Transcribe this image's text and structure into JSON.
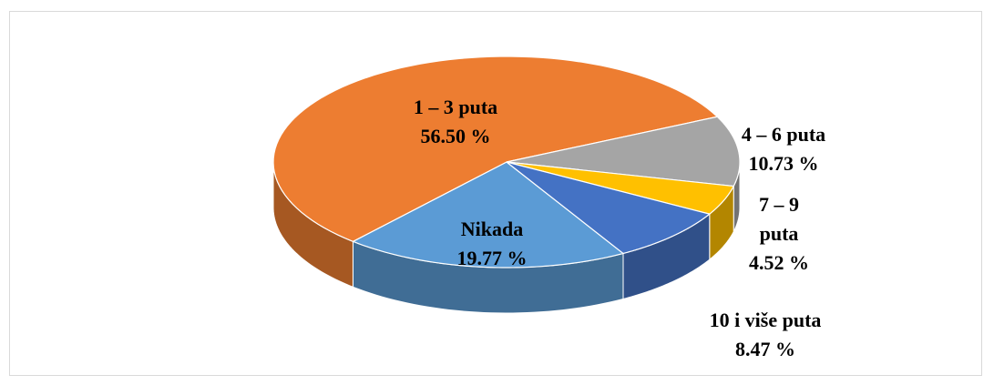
{
  "chart_data": {
    "type": "pie3d",
    "categories": [
      "Nikada",
      "1 – 3 puta",
      "4 – 6 puta",
      "7 – 9 puta",
      "10 i više puta"
    ],
    "values": [
      19.77,
      56.5,
      10.73,
      4.52,
      8.47
    ],
    "value_labels": [
      "19.77 %",
      "56.50 %",
      "10.73 %",
      "4.52 %",
      "8.47 %"
    ],
    "colors": [
      "#5b9bd5",
      "#ed7d31",
      "#a5a5a5",
      "#ffc000",
      "#4472c4"
    ]
  }
}
